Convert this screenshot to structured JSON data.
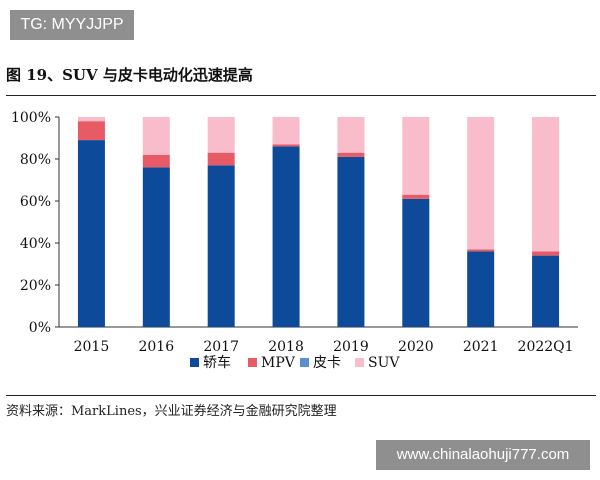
{
  "badge": {
    "text": "TG: MYYJJPP"
  },
  "figure": {
    "title": "图 19、SUV 与皮卡电动化迅速提高"
  },
  "source_note": "资料来源：MarkLines，兴业证券经济与金融研究院整理",
  "watermark": {
    "text": "www.chinalaohuji777.com"
  },
  "chart_data": {
    "type": "bar",
    "stacked": true,
    "title": "图 19、SUV 与皮卡电动化迅速提高",
    "xlabel": "",
    "ylabel": "",
    "ylim": [
      0,
      100
    ],
    "yticks": [
      "0%",
      "20%",
      "40%",
      "60%",
      "80%",
      "100%"
    ],
    "categories": [
      "2015",
      "2016",
      "2017",
      "2018",
      "2019",
      "2020",
      "2021",
      "2022Q1"
    ],
    "series": [
      {
        "name": "轿车",
        "color": "#0d4a9a",
        "values": [
          89,
          76,
          77,
          86,
          81,
          61,
          36,
          34
        ]
      },
      {
        "name": "MPV",
        "color": "#e85a66",
        "values": [
          9,
          6,
          6,
          1,
          2,
          2,
          1,
          2
        ]
      },
      {
        "name": "皮卡",
        "color": "#5b8fd0",
        "values": [
          0,
          0,
          0,
          0,
          0,
          0,
          0,
          0
        ]
      },
      {
        "name": "SUV",
        "color": "#f8bccb",
        "values": [
          2,
          18,
          17,
          13,
          17,
          37,
          63,
          64
        ]
      }
    ],
    "legend_position": "bottom",
    "grid": false
  }
}
